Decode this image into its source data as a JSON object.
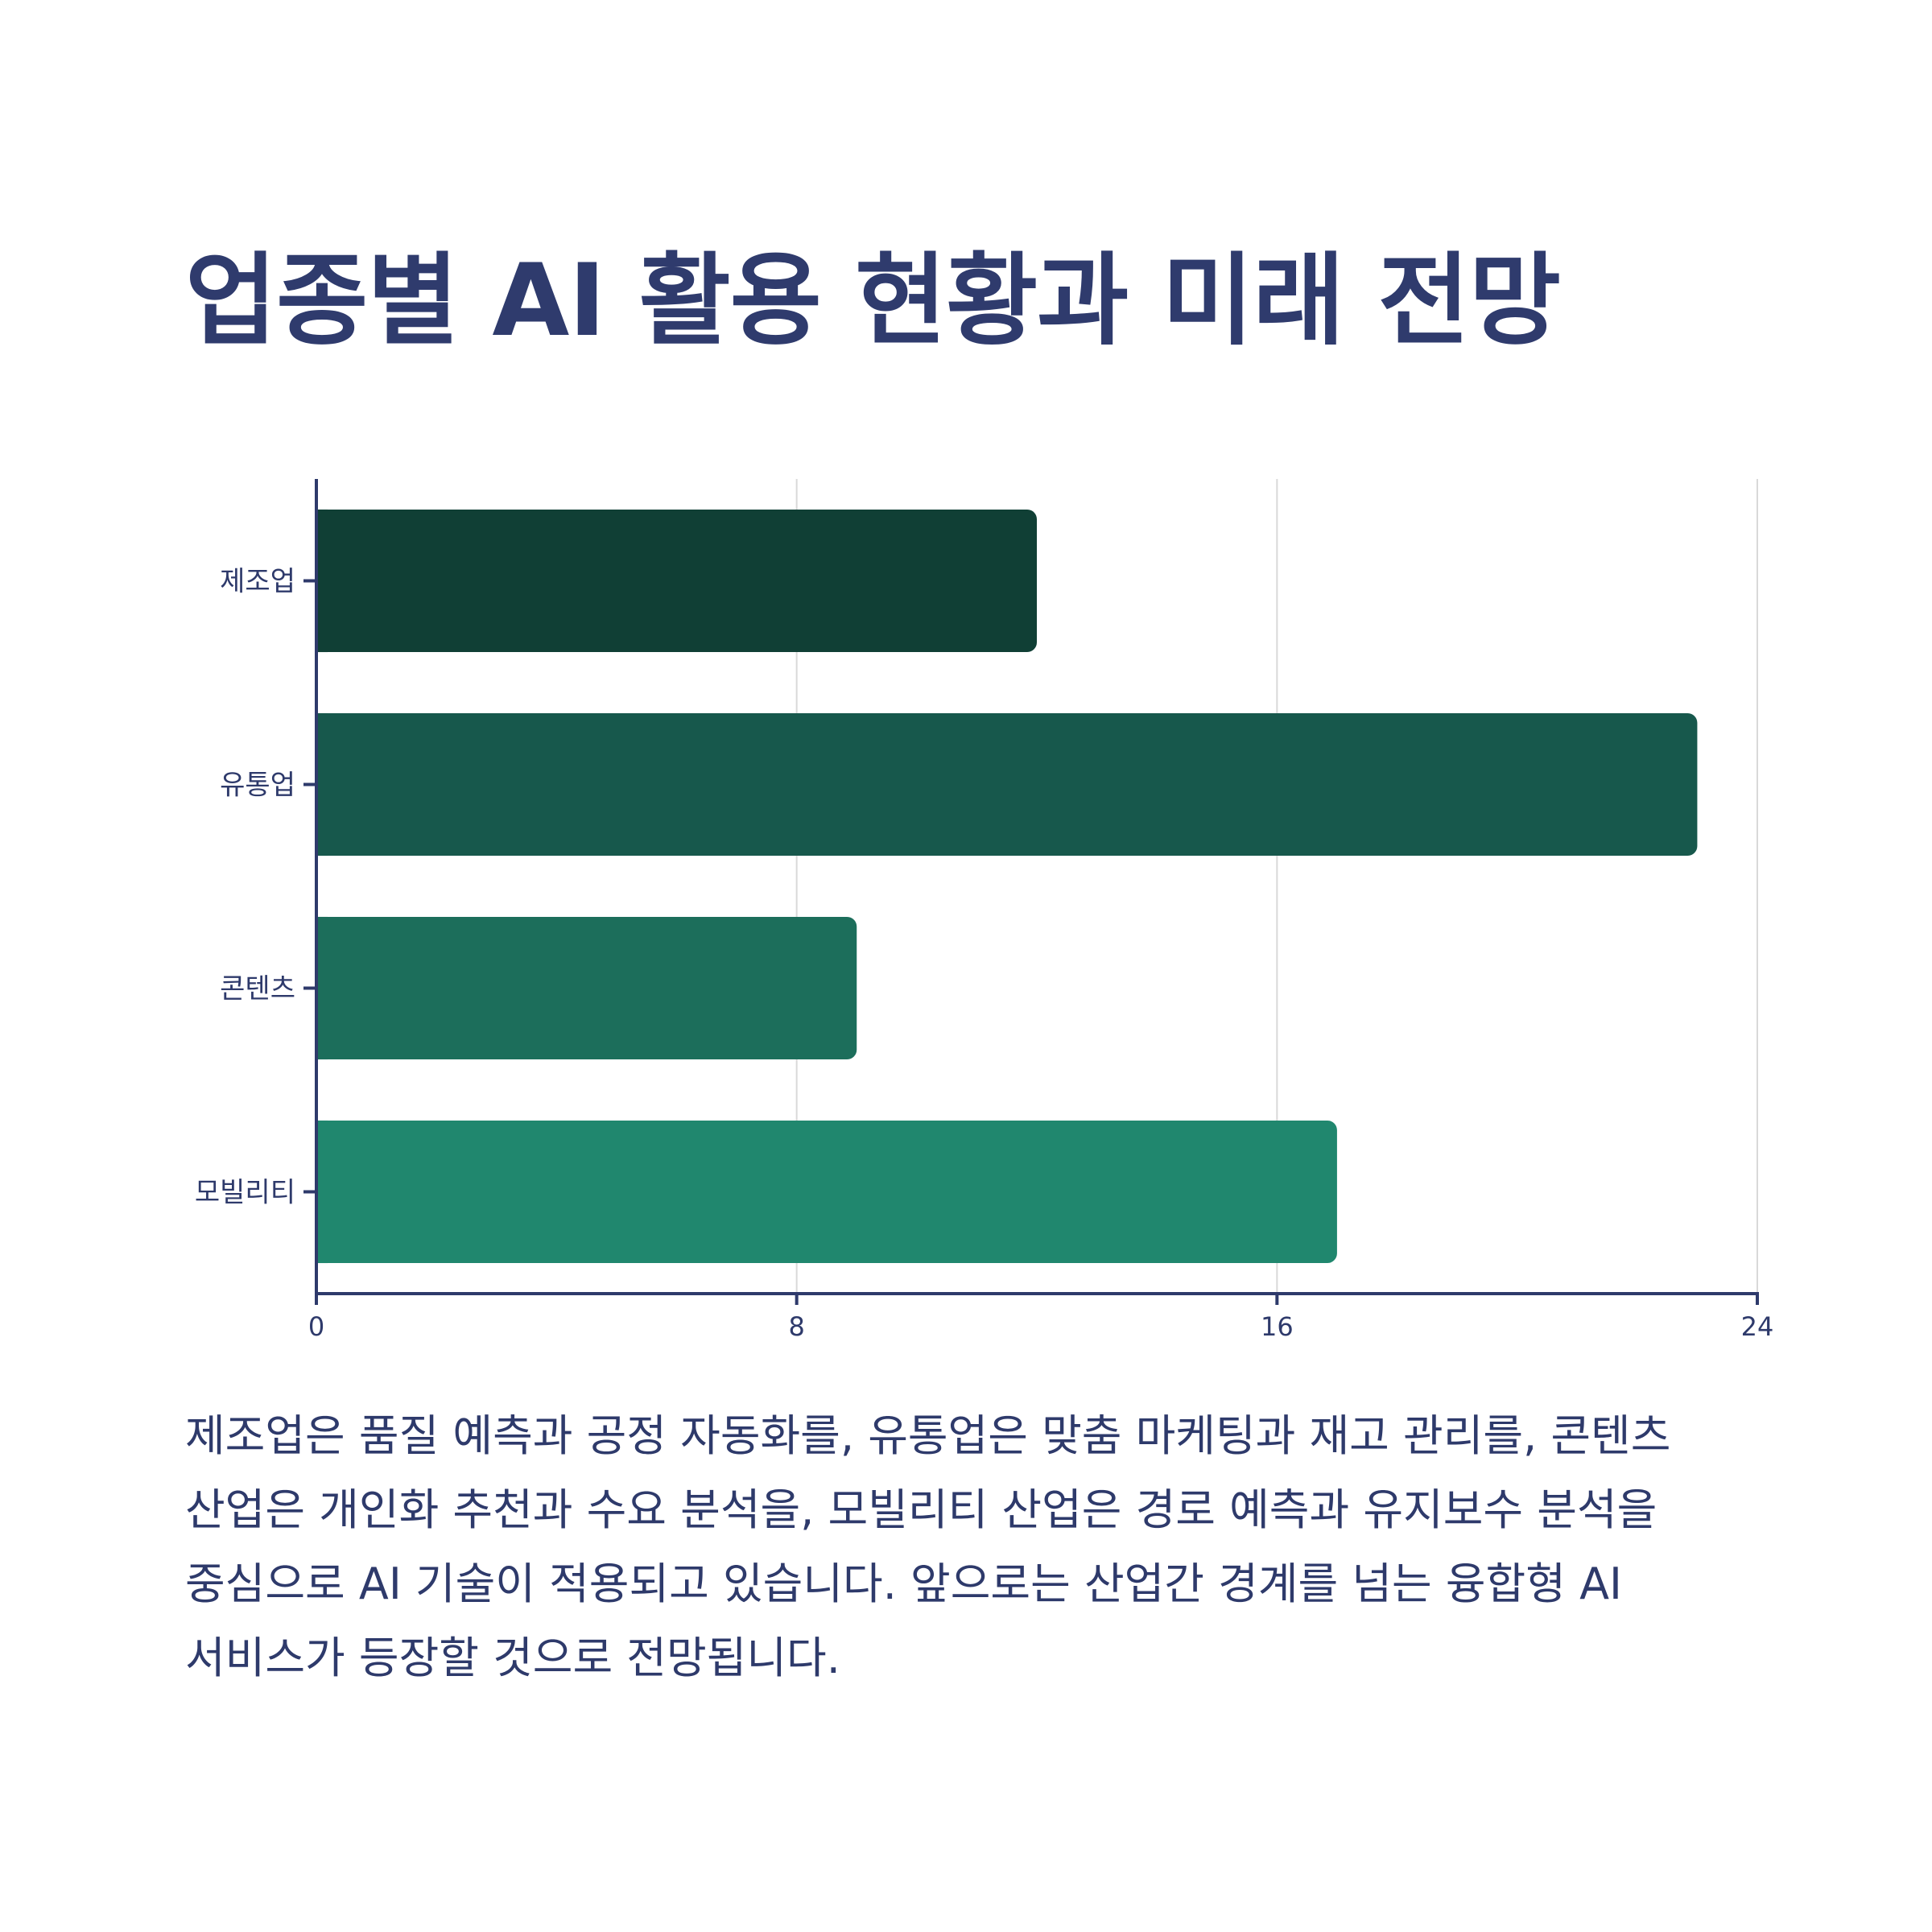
{
  "title": "업종별 AI 활용 현황과 미래 전망",
  "description": "제조업은 품질 예측과 공정 자동화를, 유통업은 맞춤 마케팅과 재고 관리를, 콘텐츠 산업은 개인화 추천과 수요 분석을, 모빌리티 산업은 경로 예측과 유지보수 분석을 중심으로 AI 기술이 적용되고 있습니다. 앞으로는 산업간 경계를 넘는 융합형 AI 서비스가 등장할 것으로 전망됩니다.",
  "chart_data": {
    "type": "bar",
    "orientation": "horizontal",
    "title": "업종별 AI 활용 현황과 미래 전망",
    "xlabel": "",
    "ylabel": "",
    "categories": [
      "제조업",
      "유통업",
      "콘텐츠",
      "모빌리티"
    ],
    "values": [
      12,
      23,
      9,
      17
    ],
    "xlim": [
      0,
      24
    ],
    "x_ticks": [
      0,
      8,
      16,
      24
    ],
    "grid": "vertical",
    "legend": "none",
    "colors": [
      "#103f35",
      "#17584c",
      "#1c6e5b",
      "#20876e"
    ],
    "axis_color": "#2e3a6b",
    "grid_color": "#d9d9d9"
  }
}
